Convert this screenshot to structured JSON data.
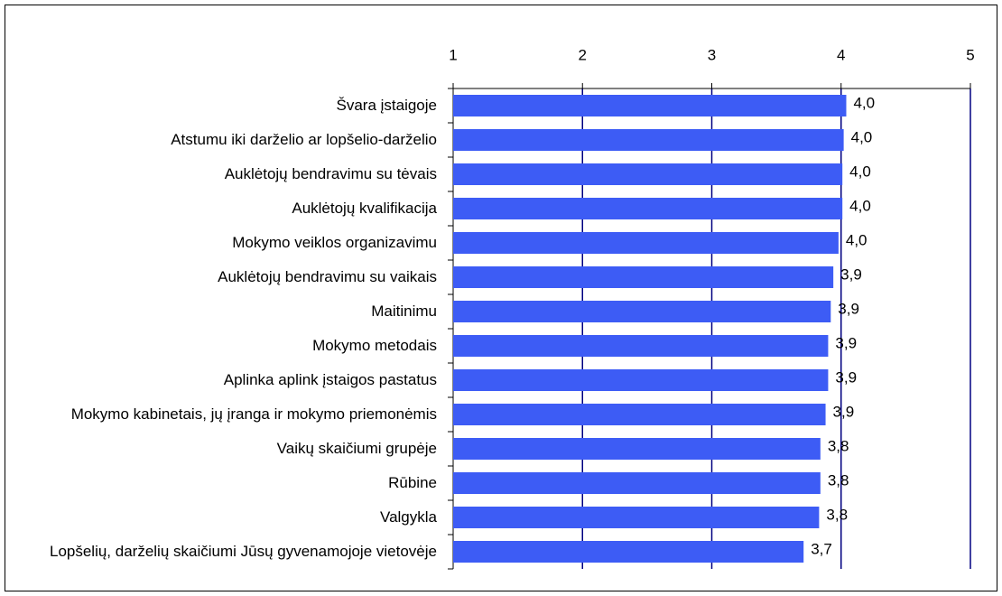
{
  "chart_data": {
    "type": "bar",
    "orientation": "horizontal",
    "categories": [
      "Švara įstaigoje",
      "Atstumu iki darželio ar lopšelio-darželio",
      "Auklėtojų bendravimu su tėvais",
      "Auklėtojų kvalifikacija",
      "Mokymo veiklos organizavimu",
      "Auklėtojų bendravimu su vaikais",
      "Maitinimu",
      "Mokymo metodais",
      "Aplinka aplink įstaigos pastatus",
      "Mokymo kabinetais, jų įranga ir mokymo priemonėmis",
      "Vaikų skaičiumi grupėje",
      "Rūbine",
      "Valgykla",
      "Lopšelių, darželių skaičiumi Jūsų gyvenamojoje vietovėje"
    ],
    "values": [
      4.04,
      4.02,
      4.01,
      4.01,
      3.98,
      3.94,
      3.92,
      3.9,
      3.9,
      3.88,
      3.84,
      3.84,
      3.83,
      3.71
    ],
    "value_labels": [
      "4,0",
      "4,0",
      "4,0",
      "4,0",
      "4,0",
      "3,9",
      "3,9",
      "3,9",
      "3,9",
      "3,9",
      "3,8",
      "3,8",
      "3,8",
      "3,7"
    ],
    "color": "#3d5cf5",
    "grid_color": "#000080",
    "xlim": [
      1,
      5
    ],
    "xticks": [
      1,
      2,
      3,
      4,
      5
    ],
    "grid": true
  }
}
